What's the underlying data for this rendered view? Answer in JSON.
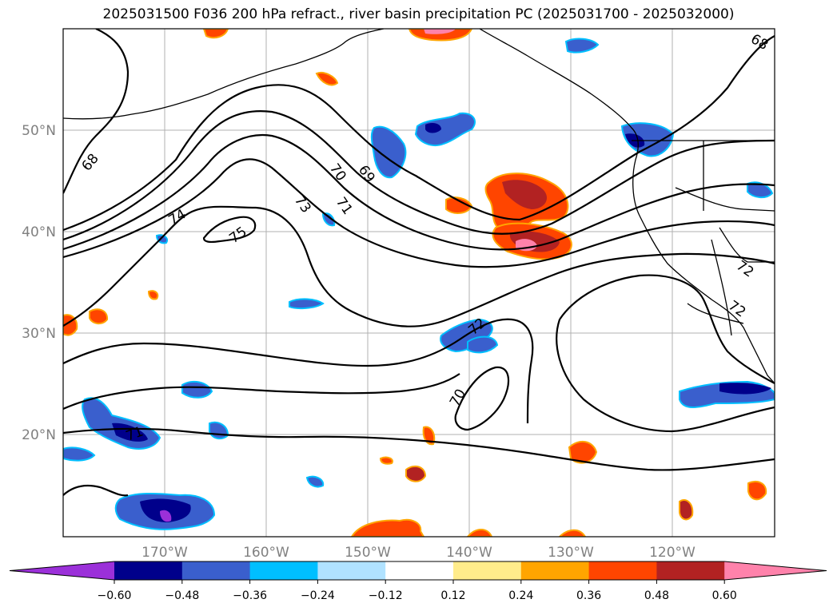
{
  "title": "2025031500 F036 200 hPa refract., river basin precipitation PC (2025031700 - 2025032000)",
  "lat_labels": [
    "50°N",
    "40°N",
    "30°N",
    "20°N"
  ],
  "lon_labels": [
    "170°W",
    "160°W",
    "150°W",
    "140°W",
    "130°W",
    "120°W"
  ],
  "contour_labels": [
    "68",
    "74",
    "75",
    "70",
    "69",
    "73",
    "71",
    "72",
    "70",
    "71",
    "72",
    "72",
    "68"
  ],
  "colorbar": {
    "ticks": [
      "−0.60",
      "−0.48",
      "−0.36",
      "−0.24",
      "−0.12",
      "0.12",
      "0.24",
      "0.36",
      "0.48",
      "0.60"
    ],
    "colors": [
      "#9b30d9",
      "#00008b",
      "#3a5fcd",
      "#00bfff",
      "#b0e2ff",
      "#ffffff",
      "#ffec8b",
      "#ffa500",
      "#ff4500",
      "#b22222",
      "#ff82ab"
    ]
  }
}
